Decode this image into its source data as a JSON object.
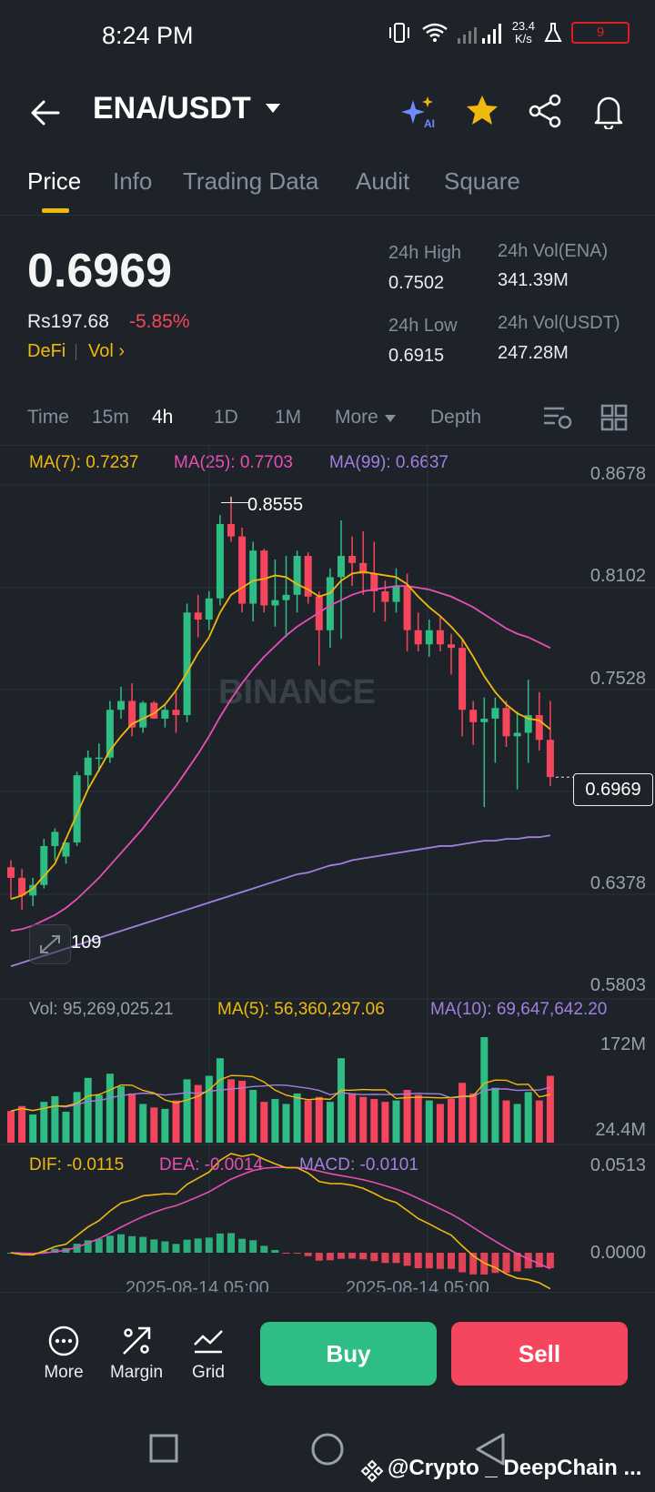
{
  "status": {
    "time": "8:24 PM",
    "net_speed_value": "23.4",
    "net_speed_unit": "K/s",
    "battery": "9"
  },
  "header": {
    "pair": "ENA/USDT",
    "icons": [
      "back-arrow-icon",
      "ai-sparkle-icon",
      "star-icon",
      "share-icon",
      "bell-icon"
    ]
  },
  "tabs": [
    "Price",
    "Info",
    "Trading Data",
    "Audit",
    "Square"
  ],
  "ticker": {
    "price": "0.6969",
    "fiat": "Rs197.68",
    "change": "-5.85%",
    "tags": [
      "DeFi",
      "Vol"
    ],
    "high_label": "24h High",
    "high": "0.7502",
    "low_label": "24h Low",
    "low": "0.6915",
    "vol_ena_label": "24h Vol(ENA)",
    "vol_ena": "341.39M",
    "vol_usdt_label": "24h Vol(USDT)",
    "vol_usdt": "247.28M"
  },
  "timeframes": [
    "Time",
    "15m",
    "4h",
    "1D",
    "1M",
    "More",
    "Depth"
  ],
  "active_timeframe": "4h",
  "ma_legend": {
    "ma7": "MA(7): 0.7237",
    "ma25": "MA(25): 0.7703",
    "ma99": "MA(99): 0.6637"
  },
  "price_axis": [
    "0.8678",
    "0.8102",
    "0.7528",
    "0.6969",
    "0.6378",
    "0.5803"
  ],
  "chart_annotations": {
    "high_mark": "0.8555",
    "low_mark": "109",
    "current_price": "0.6969",
    "watermark": "BINANCE",
    "date_labels": [
      "2025-08-14 05:00",
      "2025-08-14 05:00"
    ]
  },
  "vol_legend": {
    "vol": "Vol: 95,269,025.21",
    "ma5": "MA(5): 56,360,297.06",
    "ma10": "MA(10): 69,647,642.20"
  },
  "vol_axis": [
    "172M",
    "24.4M"
  ],
  "macd_legend": {
    "dif": "DIF: -0.0115",
    "dea": "DEA: -0.0014",
    "macd": "MACD: -0.0101"
  },
  "macd_axis": [
    "0.0513",
    "0.0000"
  ],
  "bottom_actions": {
    "more": "More",
    "margin": "Margin",
    "grid": "Grid",
    "buy": "Buy",
    "sell": "Sell"
  },
  "nav_caption": "@Crypto _ DeepChain ...",
  "colors": {
    "up": "#2ebd85",
    "down": "#f6465d",
    "accent": "#f0b90b",
    "ma25": "#e84fb5",
    "ma99": "#a17fe0",
    "background": "#1e2329"
  },
  "chart_data": {
    "type": "candlestick",
    "interval": "4h",
    "y_range": [
      0.5803,
      0.8678
    ],
    "candles": [
      [
        0.646,
        0.65,
        0.628,
        0.64
      ],
      [
        0.64,
        0.645,
        0.622,
        0.63
      ],
      [
        0.63,
        0.64,
        0.624,
        0.636
      ],
      [
        0.636,
        0.662,
        0.634,
        0.658
      ],
      [
        0.658,
        0.668,
        0.65,
        0.666
      ],
      [
        0.652,
        0.66,
        0.648,
        0.66
      ],
      [
        0.66,
        0.7,
        0.658,
        0.698
      ],
      [
        0.698,
        0.712,
        0.69,
        0.708
      ],
      [
        0.708,
        0.716,
        0.7,
        0.708
      ],
      [
        0.708,
        0.74,
        0.705,
        0.735
      ],
      [
        0.735,
        0.748,
        0.73,
        0.74
      ],
      [
        0.74,
        0.75,
        0.72,
        0.725
      ],
      [
        0.725,
        0.74,
        0.722,
        0.739
      ],
      [
        0.739,
        0.74,
        0.73,
        0.73
      ],
      [
        0.73,
        0.738,
        0.725,
        0.735
      ],
      [
        0.735,
        0.745,
        0.722,
        0.732
      ],
      [
        0.732,
        0.795,
        0.728,
        0.79
      ],
      [
        0.79,
        0.8,
        0.776,
        0.786
      ],
      [
        0.786,
        0.802,
        0.78,
        0.798
      ],
      [
        0.798,
        0.845,
        0.794,
        0.84
      ],
      [
        0.84,
        0.855,
        0.83,
        0.833
      ],
      [
        0.833,
        0.838,
        0.79,
        0.795
      ],
      [
        0.795,
        0.83,
        0.785,
        0.825
      ],
      [
        0.825,
        0.826,
        0.79,
        0.794
      ],
      [
        0.794,
        0.82,
        0.782,
        0.797
      ],
      [
        0.797,
        0.822,
        0.776,
        0.8
      ],
      [
        0.8,
        0.825,
        0.79,
        0.822
      ],
      [
        0.822,
        0.824,
        0.795,
        0.799
      ],
      [
        0.799,
        0.802,
        0.76,
        0.78
      ],
      [
        0.78,
        0.815,
        0.77,
        0.81
      ],
      [
        0.81,
        0.842,
        0.775,
        0.822
      ],
      [
        0.822,
        0.833,
        0.805,
        0.818
      ],
      [
        0.818,
        0.836,
        0.8,
        0.812
      ],
      [
        0.812,
        0.83,
        0.79,
        0.802
      ],
      [
        0.802,
        0.808,
        0.785,
        0.796
      ],
      [
        0.796,
        0.815,
        0.79,
        0.805
      ],
      [
        0.805,
        0.812,
        0.768,
        0.78
      ],
      [
        0.78,
        0.79,
        0.768,
        0.772
      ],
      [
        0.772,
        0.786,
        0.765,
        0.78
      ],
      [
        0.78,
        0.788,
        0.768,
        0.772
      ],
      [
        0.772,
        0.778,
        0.755,
        0.77
      ],
      [
        0.77,
        0.775,
        0.72,
        0.735
      ],
      [
        0.735,
        0.74,
        0.715,
        0.728
      ],
      [
        0.728,
        0.742,
        0.68,
        0.73
      ],
      [
        0.73,
        0.742,
        0.705,
        0.736
      ],
      [
        0.736,
        0.74,
        0.714,
        0.72
      ],
      [
        0.72,
        0.734,
        0.69,
        0.722
      ],
      [
        0.722,
        0.752,
        0.705,
        0.732
      ],
      [
        0.732,
        0.745,
        0.712,
        0.718
      ],
      [
        0.718,
        0.74,
        0.692,
        0.697
      ]
    ],
    "ma7": [
      0.628,
      0.63,
      0.634,
      0.641,
      0.648,
      0.662,
      0.676,
      0.69,
      0.701,
      0.712,
      0.72,
      0.727,
      0.73,
      0.733,
      0.738,
      0.746,
      0.756,
      0.767,
      0.776,
      0.79,
      0.8,
      0.804,
      0.808,
      0.809,
      0.811,
      0.81,
      0.806,
      0.803,
      0.799,
      0.801,
      0.808,
      0.812,
      0.813,
      0.812,
      0.811,
      0.81,
      0.806,
      0.799,
      0.793,
      0.788,
      0.782,
      0.775,
      0.765,
      0.754,
      0.745,
      0.738,
      0.733,
      0.73,
      0.729,
      0.724
    ],
    "ma25": [
      0.61,
      0.611,
      0.613,
      0.616,
      0.619,
      0.623,
      0.628,
      0.634,
      0.64,
      0.647,
      0.654,
      0.661,
      0.668,
      0.676,
      0.684,
      0.692,
      0.701,
      0.71,
      0.72,
      0.731,
      0.741,
      0.75,
      0.758,
      0.765,
      0.771,
      0.777,
      0.782,
      0.786,
      0.79,
      0.794,
      0.797,
      0.8,
      0.802,
      0.803,
      0.804,
      0.805,
      0.805,
      0.804,
      0.803,
      0.801,
      0.799,
      0.796,
      0.793,
      0.789,
      0.785,
      0.781,
      0.778,
      0.776,
      0.773,
      0.77
    ],
    "ma99": [
      0.59,
      0.592,
      0.594,
      0.596,
      0.598,
      0.6,
      0.602,
      0.604,
      0.606,
      0.608,
      0.61,
      0.612,
      0.614,
      0.616,
      0.618,
      0.62,
      0.622,
      0.624,
      0.626,
      0.628,
      0.63,
      0.632,
      0.634,
      0.636,
      0.638,
      0.64,
      0.642,
      0.643,
      0.645,
      0.647,
      0.648,
      0.65,
      0.651,
      0.652,
      0.653,
      0.654,
      0.655,
      0.656,
      0.657,
      0.658,
      0.658,
      0.659,
      0.66,
      0.661,
      0.661,
      0.662,
      0.662,
      0.663,
      0.663,
      0.664
    ],
    "volume": [
      45,
      52,
      40,
      58,
      66,
      44,
      72,
      92,
      68,
      98,
      80,
      70,
      55,
      50,
      48,
      60,
      90,
      82,
      95,
      120,
      90,
      88,
      75,
      58,
      62,
      55,
      70,
      60,
      65,
      58,
      120,
      70,
      65,
      62,
      58,
      60,
      75,
      68,
      60,
      55,
      62,
      85,
      70,
      150,
      78,
      60,
      55,
      72,
      60,
      95
    ]
  }
}
